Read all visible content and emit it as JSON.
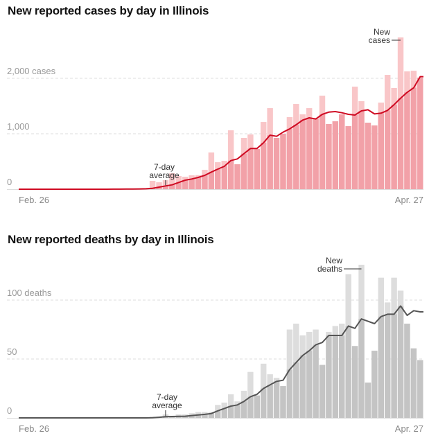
{
  "chart_data": [
    {
      "type": "bar",
      "title": "New reported cases by day in Illinois",
      "x_start_label": "Feb. 26",
      "x_end_label": "Apr. 27",
      "ylim": [
        0,
        2800
      ],
      "y_ticks": [
        {
          "value": 0,
          "label": "0"
        },
        {
          "value": 1000,
          "label": "1,000"
        },
        {
          "value": 2000,
          "label": "2,000 cases"
        }
      ],
      "grid": true,
      "annotations": {
        "bars": [
          "New",
          "cases"
        ],
        "average": [
          "7-day",
          "average"
        ]
      },
      "colors": {
        "bar_light": "#f9c6c8",
        "bar_dark": "#f2a1a8",
        "line": "#cf0a22",
        "grid": "#dddddd",
        "axis": "#dddddd"
      },
      "series": [
        {
          "name": "New cases",
          "type": "bar",
          "values": [
            0,
            0,
            0,
            0,
            0,
            0,
            0,
            0,
            0,
            0,
            0,
            1,
            0,
            1,
            2,
            3,
            5,
            6,
            12,
            20,
            150,
            125,
            162,
            287,
            237,
            225,
            250,
            254,
            350,
            662,
            487,
            512,
            1062,
            450,
            925,
            987,
            725,
            1212,
            1462,
            925,
            1000,
            1300,
            1537,
            1350,
            1462,
            1287,
            1687,
            1175,
            1225,
            1350,
            1137,
            1850,
            1587,
            1200,
            1150,
            1562,
            2062,
            1825,
            2737,
            2125,
            2137,
            2012
          ]
        },
        {
          "name": "7-day average",
          "type": "line",
          "values": [
            0,
            0,
            0,
            0,
            0,
            0,
            0,
            0,
            0,
            0,
            0.2,
            0.3,
            0.3,
            0.5,
            0.8,
            1.3,
            2,
            3,
            5,
            8,
            16,
            37,
            59,
            79,
            121,
            162,
            184,
            212,
            250,
            309,
            362,
            412,
            516,
            546,
            641,
            734,
            734,
            837,
            975,
            954,
            1029,
            1087,
            1162,
            1246,
            1287,
            1266,
            1350,
            1390,
            1400,
            1379,
            1350,
            1337,
            1412,
            1433,
            1358,
            1371,
            1421,
            1525,
            1641,
            1746,
            1829,
            2030
          ]
        }
      ]
    },
    {
      "type": "bar",
      "title": "New reported deaths by day in Illinois",
      "x_start_label": "Feb. 26",
      "x_end_label": "Apr. 27",
      "ylim": [
        0,
        135
      ],
      "y_ticks": [
        {
          "value": 0,
          "label": "0"
        },
        {
          "value": 50,
          "label": "50"
        },
        {
          "value": 100,
          "label": "100 deaths"
        }
      ],
      "grid": true,
      "annotations": {
        "bars": [
          "New",
          "deaths"
        ],
        "average": [
          "7-day",
          "average"
        ]
      },
      "colors": {
        "bar_light": "#dddddd",
        "bar_dark": "#c4c4c4",
        "line": "#555555",
        "grid": "#dddddd",
        "axis": "#dddddd"
      },
      "series": [
        {
          "name": "New deaths",
          "type": "bar",
          "values": [
            0,
            0,
            0,
            0,
            0,
            0,
            0,
            0,
            0,
            0,
            0,
            0,
            0,
            0,
            0,
            0,
            0,
            0,
            0,
            0,
            1,
            1,
            3,
            1,
            3,
            3,
            4,
            5,
            5,
            5,
            11,
            13,
            20,
            14,
            23,
            39,
            19,
            46,
            37,
            34,
            27,
            75,
            80,
            70,
            73,
            75,
            45,
            73,
            78,
            80,
            122,
            61,
            130,
            30,
            57,
            119,
            98,
            119,
            108,
            80,
            59,
            49
          ]
        },
        {
          "name": "7-day average",
          "type": "line",
          "values": [
            0,
            0,
            0,
            0,
            0,
            0,
            0,
            0,
            0,
            0,
            0,
            0,
            0,
            0,
            0,
            0,
            0,
            0,
            0,
            0,
            0.2,
            0.5,
            1,
            1.2,
            1.3,
            1.4,
            2,
            2.5,
            3,
            3.7,
            6,
            8,
            10,
            11,
            14,
            18,
            20,
            25,
            28,
            31,
            32,
            41,
            47,
            53,
            57,
            62,
            64,
            70,
            70,
            70,
            78,
            76,
            84,
            82,
            80,
            86,
            88,
            88,
            95,
            87,
            91,
            90
          ]
        }
      ]
    }
  ]
}
